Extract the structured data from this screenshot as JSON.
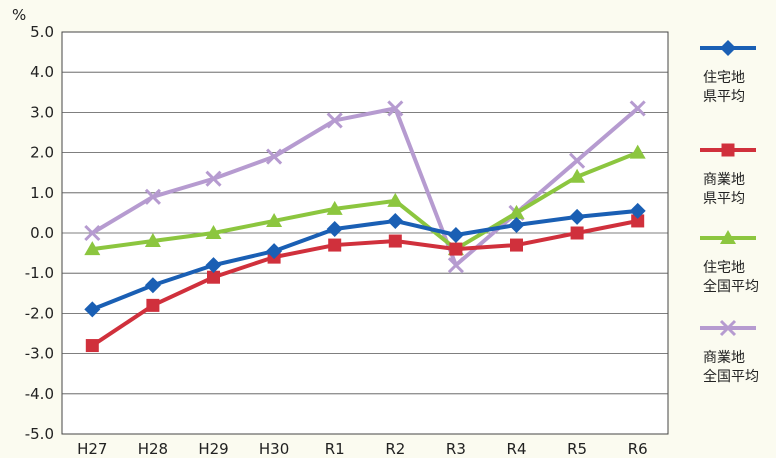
{
  "chart_data": {
    "type": "line",
    "unit_label": "%",
    "categories": [
      "H27",
      "H28",
      "H29",
      "H30",
      "R1",
      "R2",
      "R3",
      "R4",
      "R5",
      "R6"
    ],
    "ylim": [
      -5.0,
      5.0
    ],
    "yticks": [
      "5.0",
      "4.0",
      "3.0",
      "2.0",
      "1.0",
      "0.0",
      "-1.0",
      "-2.0",
      "-3.0",
      "-4.0",
      "-5.0"
    ],
    "grid": true,
    "legend_position": "right",
    "series": [
      {
        "name_line1": "住宅地",
        "name_line2": "県平均",
        "color": "#1a5fb4",
        "marker": "diamond",
        "values": [
          -1.9,
          -1.3,
          -0.8,
          -0.45,
          0.1,
          0.3,
          -0.05,
          0.2,
          0.4,
          0.55
        ]
      },
      {
        "name_line1": "商業地",
        "name_line2": "県平均",
        "color": "#d0303c",
        "marker": "square",
        "values": [
          -2.8,
          -1.8,
          -1.1,
          -0.6,
          -0.3,
          -0.2,
          -0.4,
          -0.3,
          0.0,
          0.3
        ]
      },
      {
        "name_line1": "住宅地",
        "name_line2": "全国平均",
        "color": "#8cc63f",
        "marker": "triangle",
        "values": [
          -0.4,
          -0.2,
          0.0,
          0.3,
          0.6,
          0.8,
          -0.4,
          0.5,
          1.4,
          2.0
        ]
      },
      {
        "name_line1": "商業地",
        "name_line2": "全国平均",
        "color": "#b69bd0",
        "marker": "x",
        "values": [
          0.0,
          0.9,
          1.35,
          1.9,
          2.8,
          3.1,
          -0.8,
          0.5,
          1.8,
          3.1
        ]
      }
    ]
  }
}
